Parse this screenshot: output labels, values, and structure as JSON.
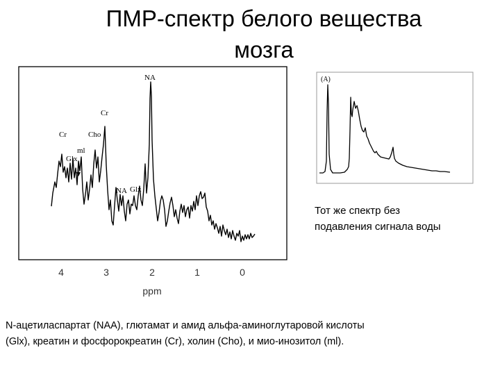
{
  "slide": {
    "title_line1": "ПМР-спектр белого вещества",
    "title_line2": "мозга",
    "caption_line1": "Тот же спектр без",
    "caption_line2": "подавления сигнала воды",
    "footnote_line1": "N-ацетиласпартат (NAA), глютамат и амид альфа-аминоглутаровой кислоты",
    "footnote_line2": "(Glx), креатин и фосфорокреатин (Cr), холин (Cho), и мио-инозитол (ml)."
  },
  "main_spectrum": {
    "xlabel": "ppm",
    "ticks": [
      "4",
      "3",
      "2",
      "1",
      "0"
    ],
    "peaks": {
      "naa_top": "NA",
      "cr_top": "Cr",
      "cr_left": "Cr",
      "cho": "Cho",
      "ml": "ml",
      "glx_left": "Glx",
      "naa_small": "NA",
      "glx_small": "Glx"
    }
  },
  "inset_spectrum": {
    "label": "(A)"
  }
}
